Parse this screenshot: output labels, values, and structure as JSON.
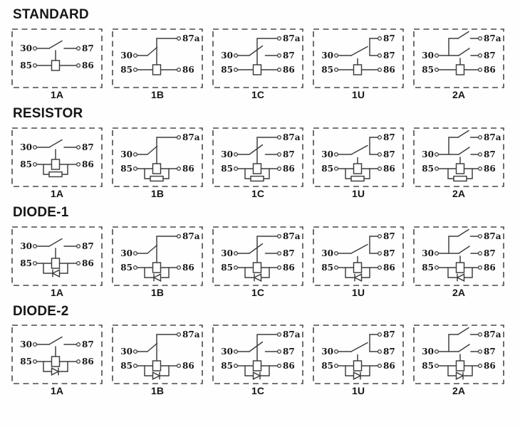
{
  "colors": {
    "background": "#fefefe",
    "line": "#3c3c3c",
    "box_border": "#4a4a4a",
    "text": "#161616"
  },
  "sections": [
    {
      "title": "STANDARD",
      "modifier": "none",
      "cells": [
        {
          "label": "1A",
          "type": "1A",
          "terminals": {
            "t30": "30",
            "mid_right": "87",
            "t85": "85",
            "t86": "86"
          }
        },
        {
          "label": "1B",
          "type": "1B",
          "terminals": {
            "t30": "30",
            "top_right": "87a",
            "t85": "85",
            "t86": "86"
          }
        },
        {
          "label": "1C",
          "type": "1C",
          "terminals": {
            "t30": "30",
            "top_right": "87a",
            "mid_right": "87",
            "t85": "85",
            "t86": "86"
          }
        },
        {
          "label": "1U",
          "type": "1U",
          "terminals": {
            "t30": "30",
            "top_right": "87",
            "mid_right": "87",
            "t85": "85",
            "t86": "86"
          }
        },
        {
          "label": "2A",
          "type": "2A",
          "terminals": {
            "t30": "30",
            "top_right": "87a",
            "mid_right": "87",
            "t85": "85",
            "t86": "86"
          }
        }
      ]
    },
    {
      "title": "RESISTOR",
      "modifier": "resistor",
      "cells": [
        {
          "label": "1A",
          "type": "1A",
          "terminals": {
            "t30": "30",
            "mid_right": "87",
            "t85": "85",
            "t86": "86"
          }
        },
        {
          "label": "1B",
          "type": "1B",
          "terminals": {
            "t30": "30",
            "top_right": "87a",
            "t85": "85",
            "t86": "86"
          }
        },
        {
          "label": "1C",
          "type": "1C",
          "terminals": {
            "t30": "30",
            "top_right": "87a",
            "mid_right": "87",
            "t85": "85",
            "t86": "86"
          }
        },
        {
          "label": "1U",
          "type": "1U",
          "terminals": {
            "t30": "30",
            "top_right": "87",
            "mid_right": "87",
            "t85": "85",
            "t86": "86"
          }
        },
        {
          "label": "2A",
          "type": "2A",
          "terminals": {
            "t30": "30",
            "top_right": "87a",
            "mid_right": "87",
            "t85": "85",
            "t86": "86"
          }
        }
      ]
    },
    {
      "title": "DIODE-1",
      "modifier": "diode_left",
      "cells": [
        {
          "label": "1A",
          "type": "1A",
          "terminals": {
            "t30": "30",
            "mid_right": "87",
            "t85": "85",
            "t86": "86"
          }
        },
        {
          "label": "1B",
          "type": "1B",
          "terminals": {
            "t30": "30",
            "top_right": "87a",
            "t85": "85",
            "t86": "86"
          }
        },
        {
          "label": "1C",
          "type": "1C",
          "terminals": {
            "t30": "30",
            "top_right": "87a",
            "mid_right": "87",
            "t85": "85",
            "t86": "86"
          }
        },
        {
          "label": "1U",
          "type": "1U",
          "terminals": {
            "t30": "30",
            "top_right": "87",
            "mid_right": "87",
            "t85": "85",
            "t86": "86"
          }
        },
        {
          "label": "2A",
          "type": "2A",
          "terminals": {
            "t30": "30",
            "top_right": "87a",
            "mid_right": "87",
            "t85": "85",
            "t86": "86"
          }
        }
      ]
    },
    {
      "title": "DIODE-2",
      "modifier": "diode_right",
      "cells": [
        {
          "label": "1A",
          "type": "1A",
          "terminals": {
            "t30": "30",
            "mid_right": "87",
            "t85": "85",
            "t86": "86"
          }
        },
        {
          "label": "1B",
          "type": "1B",
          "terminals": {
            "t30": "30",
            "top_right": "87a",
            "t85": "85",
            "t86": "86"
          }
        },
        {
          "label": "1C",
          "type": "1C",
          "terminals": {
            "t30": "30",
            "top_right": "87a",
            "mid_right": "87",
            "t85": "85",
            "t86": "86"
          }
        },
        {
          "label": "1U",
          "type": "1U",
          "terminals": {
            "t30": "30",
            "top_right": "87",
            "mid_right": "87",
            "t85": "85",
            "t86": "86"
          }
        },
        {
          "label": "2A",
          "type": "2A",
          "terminals": {
            "t30": "30",
            "top_right": "87a",
            "mid_right": "87",
            "t85": "85",
            "t86": "86"
          }
        }
      ]
    }
  ]
}
